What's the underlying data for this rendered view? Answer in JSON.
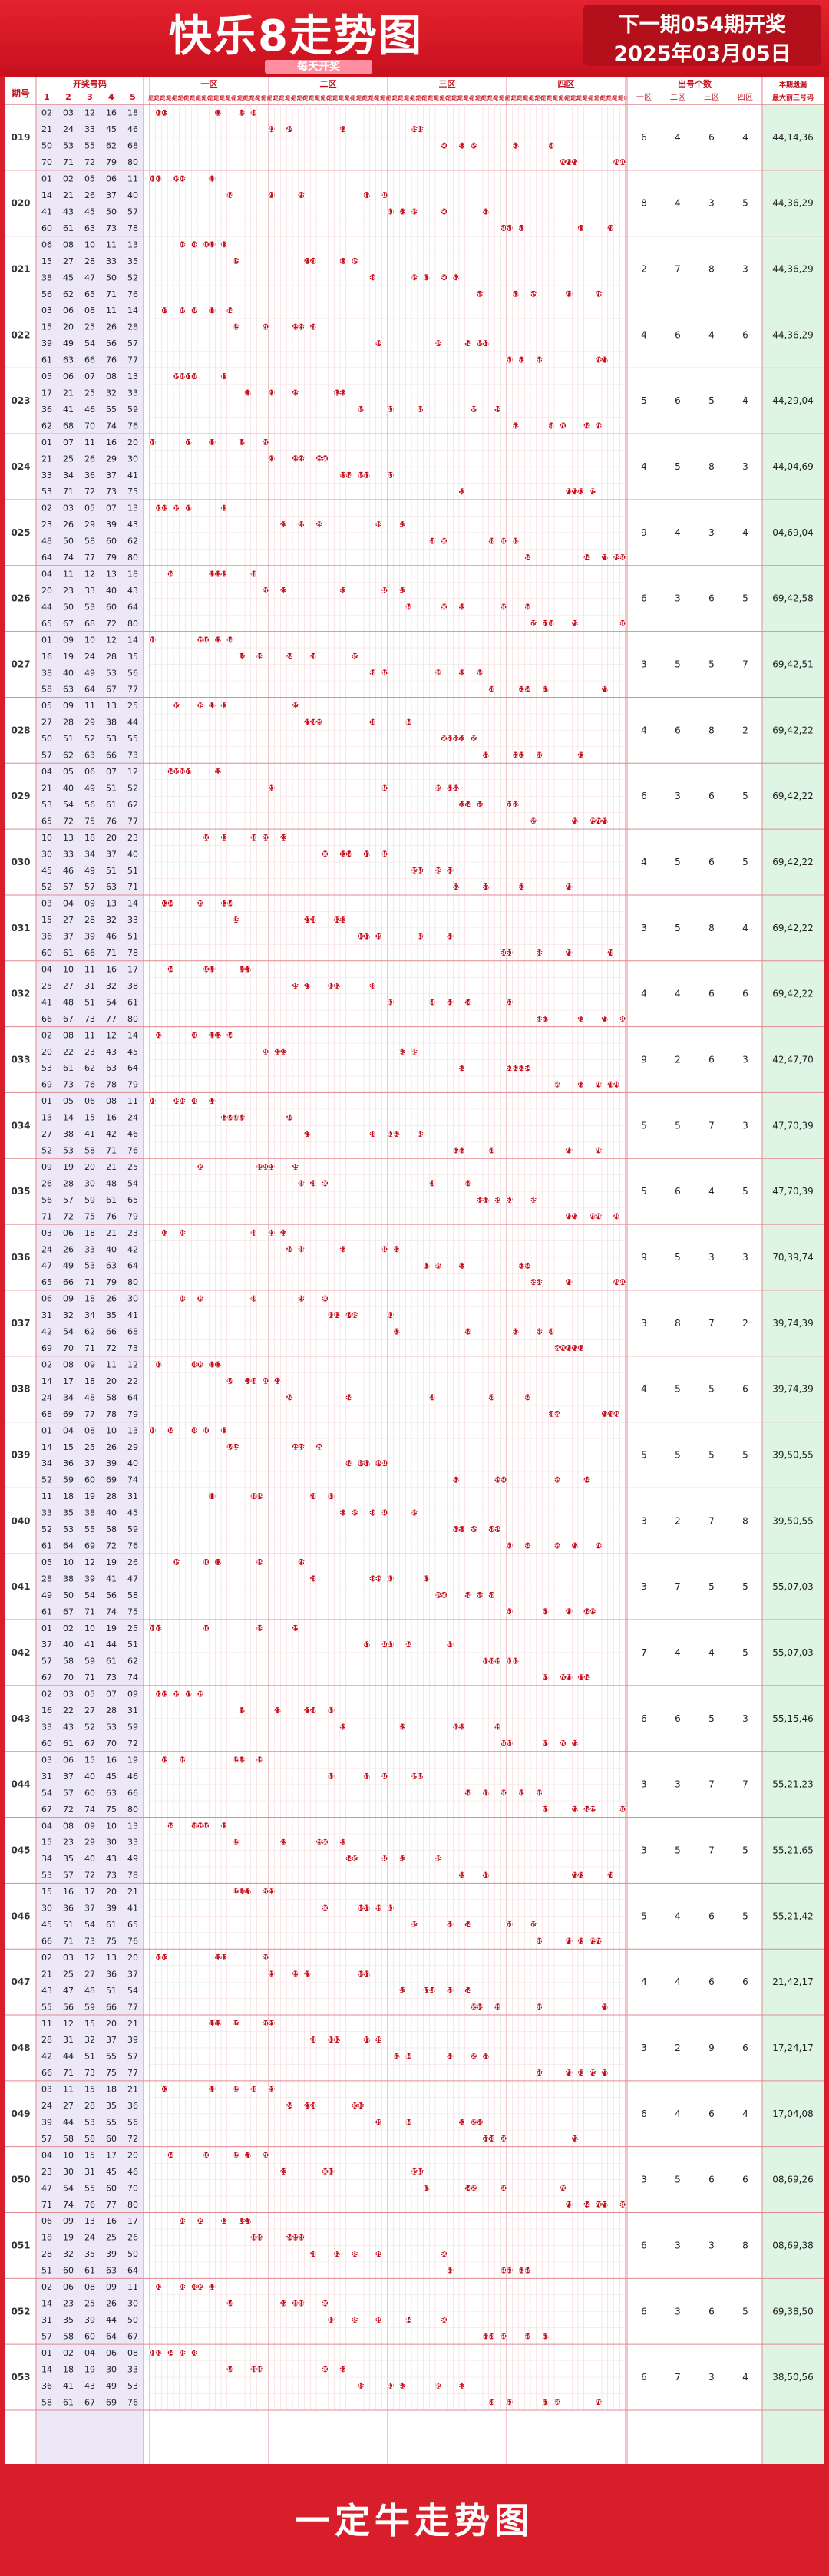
{
  "header": {
    "title": "快乐8走势图",
    "subtitle": "每天开奖",
    "next_draw": "下一期054期开奖",
    "next_date": "2025年03月05日"
  },
  "table": {
    "issue_header": "期号",
    "numbers_header": "开奖号码",
    "number_columns": [
      "1",
      "2",
      "3",
      "4",
      "5"
    ],
    "zones": [
      "一区",
      "二区",
      "三区",
      "四区"
    ],
    "tail_labels": [
      "尾1",
      "尾2",
      "尾3",
      "尾4",
      "尾5",
      "尾6",
      "尾7",
      "尾8",
      "尾9",
      "尾0"
    ],
    "count_header": "出号个数",
    "count_columns": [
      "一区",
      "二区",
      "三区",
      "四区"
    ],
    "gap_header": "本期遗漏最大前三号码"
  },
  "draws": [
    {
      "issue": "019",
      "numbers": [
        2,
        3,
        12,
        16,
        18,
        21,
        24,
        33,
        45,
        46,
        50,
        53,
        55,
        62,
        68,
        70,
        71,
        72,
        79,
        80
      ],
      "counts": [
        6,
        4,
        6,
        4
      ],
      "gap": "44,14,36"
    },
    {
      "issue": "020",
      "numbers": [
        1,
        2,
        5,
        6,
        11,
        14,
        21,
        26,
        37,
        40,
        41,
        43,
        45,
        50,
        57,
        60,
        61,
        63,
        73,
        78
      ],
      "counts": [
        8,
        4,
        3,
        5
      ],
      "gap": "44,36,29"
    },
    {
      "issue": "021",
      "numbers": [
        6,
        8,
        10,
        11,
        13,
        15,
        27,
        28,
        33,
        35,
        38,
        45,
        47,
        50,
        52,
        56,
        62,
        65,
        71,
        76
      ],
      "counts": [
        2,
        7,
        8,
        3
      ],
      "gap": "44,36,29"
    },
    {
      "issue": "022",
      "numbers": [
        3,
        6,
        8,
        11,
        14,
        15,
        20,
        25,
        26,
        28,
        39,
        49,
        54,
        56,
        57,
        61,
        63,
        66,
        76,
        77
      ],
      "counts": [
        4,
        6,
        4,
        6
      ],
      "gap": "44,36,29"
    },
    {
      "issue": "023",
      "numbers": [
        5,
        6,
        7,
        8,
        13,
        17,
        21,
        25,
        32,
        33,
        36,
        41,
        46,
        55,
        59,
        62,
        68,
        70,
        74,
        76
      ],
      "counts": [
        5,
        6,
        5,
        4
      ],
      "gap": "44,29,04"
    },
    {
      "issue": "024",
      "numbers": [
        1,
        7,
        11,
        16,
        20,
        21,
        25,
        26,
        29,
        30,
        33,
        34,
        36,
        37,
        41,
        53,
        71,
        72,
        73,
        75
      ],
      "counts": [
        4,
        5,
        8,
        3
      ],
      "gap": "44,04,69"
    },
    {
      "issue": "025",
      "numbers": [
        2,
        3,
        5,
        7,
        13,
        23,
        26,
        29,
        39,
        43,
        48,
        50,
        58,
        60,
        62,
        64,
        74,
        77,
        79,
        80
      ],
      "counts": [
        9,
        4,
        3,
        4
      ],
      "gap": "04,69,04"
    },
    {
      "issue": "026",
      "numbers": [
        4,
        11,
        12,
        13,
        18,
        20,
        23,
        33,
        40,
        43,
        44,
        50,
        53,
        60,
        64,
        65,
        67,
        68,
        72,
        80
      ],
      "counts": [
        6,
        3,
        6,
        5
      ],
      "gap": "69,42,58"
    },
    {
      "issue": "027",
      "numbers": [
        1,
        9,
        10,
        12,
        14,
        16,
        19,
        24,
        28,
        35,
        38,
        40,
        49,
        53,
        56,
        58,
        63,
        64,
        67,
        77
      ],
      "counts": [
        3,
        5,
        5,
        7
      ],
      "gap": "69,42,51"
    },
    {
      "issue": "028",
      "numbers": [
        5,
        9,
        11,
        13,
        25,
        27,
        28,
        29,
        38,
        44,
        50,
        51,
        52,
        53,
        55,
        57,
        62,
        63,
        66,
        73
      ],
      "counts": [
        4,
        6,
        8,
        2
      ],
      "gap": "69,42,22"
    },
    {
      "issue": "029",
      "numbers": [
        4,
        5,
        6,
        7,
        12,
        21,
        40,
        49,
        51,
        52,
        53,
        54,
        56,
        61,
        62,
        65,
        72,
        75,
        76,
        77
      ],
      "counts": [
        6,
        3,
        6,
        5
      ],
      "gap": "69,42,22"
    },
    {
      "issue": "030",
      "numbers": [
        10,
        13,
        18,
        20,
        23,
        30,
        33,
        34,
        37,
        40,
        45,
        46,
        49,
        51,
        52,
        57,
        51,
        57,
        63,
        71
      ],
      "counts": [
        4,
        5,
        6,
        5
      ],
      "gap": "69,42,22"
    },
    {
      "issue": "031",
      "numbers": [
        3,
        4,
        9,
        13,
        14,
        15,
        27,
        28,
        32,
        33,
        36,
        37,
        39,
        46,
        51,
        60,
        61,
        66,
        71,
        78
      ],
      "counts": [
        3,
        5,
        8,
        4
      ],
      "gap": "69,42,22"
    },
    {
      "issue": "032",
      "numbers": [
        4,
        10,
        11,
        16,
        17,
        25,
        27,
        31,
        32,
        38,
        41,
        48,
        51,
        54,
        61,
        66,
        67,
        73,
        77,
        80
      ],
      "counts": [
        4,
        4,
        6,
        6
      ],
      "gap": "69,42,22"
    },
    {
      "issue": "033",
      "numbers": [
        2,
        8,
        11,
        12,
        14,
        20,
        22,
        23,
        43,
        45,
        53,
        61,
        62,
        63,
        64,
        69,
        73,
        76,
        78,
        79
      ],
      "counts": [
        9,
        2,
        6,
        3
      ],
      "gap": "42,47,70"
    },
    {
      "issue": "034",
      "numbers": [
        1,
        5,
        6,
        8,
        11,
        13,
        14,
        15,
        16,
        24,
        27,
        38,
        41,
        42,
        46,
        52,
        53,
        58,
        71,
        76
      ],
      "counts": [
        5,
        5,
        7,
        3
      ],
      "gap": "47,70,39"
    },
    {
      "issue": "035",
      "numbers": [
        9,
        19,
        20,
        21,
        25,
        26,
        28,
        30,
        48,
        54,
        56,
        57,
        59,
        61,
        65,
        71,
        72,
        75,
        76,
        79
      ],
      "counts": [
        5,
        6,
        4,
        5
      ],
      "gap": "47,70,39"
    },
    {
      "issue": "036",
      "numbers": [
        3,
        6,
        18,
        21,
        23,
        24,
        26,
        33,
        40,
        42,
        47,
        49,
        53,
        63,
        64,
        65,
        66,
        71,
        80,
        79
      ],
      "counts": [
        9,
        5,
        3,
        3
      ],
      "gap": "70,39,74"
    },
    {
      "issue": "037",
      "numbers": [
        6,
        9,
        18,
        26,
        30,
        31,
        32,
        34,
        35,
        41,
        42,
        54,
        62,
        66,
        68,
        69,
        70,
        71,
        72,
        73
      ],
      "counts": [
        3,
        8,
        7,
        2
      ],
      "gap": "39,74,39"
    },
    {
      "issue": "038",
      "numbers": [
        2,
        8,
        9,
        11,
        12,
        14,
        17,
        18,
        20,
        22,
        24,
        34,
        48,
        58,
        64,
        68,
        69,
        77,
        78,
        79
      ],
      "counts": [
        4,
        5,
        5,
        6
      ],
      "gap": "39,74,39"
    },
    {
      "issue": "039",
      "numbers": [
        1,
        4,
        8,
        10,
        13,
        14,
        15,
        25,
        26,
        29,
        34,
        36,
        37,
        39,
        40,
        52,
        59,
        60,
        69,
        74
      ],
      "counts": [
        5,
        5,
        5,
        5
      ],
      "gap": "39,50,55"
    },
    {
      "issue": "040",
      "numbers": [
        11,
        18,
        19,
        28,
        31,
        33,
        35,
        38,
        40,
        45,
        52,
        53,
        55,
        58,
        59,
        61,
        64,
        69,
        72,
        76
      ],
      "counts": [
        3,
        2,
        7,
        8
      ],
      "gap": "39,50,55"
    },
    {
      "issue": "041",
      "numbers": [
        5,
        10,
        12,
        19,
        26,
        28,
        38,
        39,
        41,
        47,
        49,
        50,
        54,
        56,
        58,
        61,
        67,
        71,
        74,
        75
      ],
      "counts": [
        3,
        7,
        5,
        5
      ],
      "gap": "55,07,03"
    },
    {
      "issue": "042",
      "numbers": [
        1,
        2,
        10,
        19,
        25,
        37,
        40,
        41,
        44,
        51,
        57,
        58,
        59,
        61,
        62,
        67,
        70,
        71,
        73,
        74
      ],
      "counts": [
        7,
        4,
        4,
        5
      ],
      "gap": "55,07,03"
    },
    {
      "issue": "043",
      "numbers": [
        2,
        3,
        5,
        7,
        9,
        16,
        22,
        27,
        28,
        31,
        33,
        43,
        52,
        53,
        59,
        60,
        61,
        67,
        70,
        72
      ],
      "counts": [
        6,
        6,
        5,
        3
      ],
      "gap": "55,15,46"
    },
    {
      "issue": "044",
      "numbers": [
        3,
        6,
        15,
        16,
        19,
        31,
        37,
        40,
        45,
        46,
        54,
        57,
        60,
        63,
        66,
        67,
        72,
        74,
        75,
        80
      ],
      "counts": [
        3,
        3,
        7,
        7
      ],
      "gap": "55,21,23"
    },
    {
      "issue": "045",
      "numbers": [
        4,
        8,
        9,
        10,
        13,
        15,
        23,
        29,
        30,
        33,
        34,
        35,
        40,
        43,
        49,
        53,
        57,
        72,
        73,
        78
      ],
      "counts": [
        3,
        5,
        7,
        5
      ],
      "gap": "55,21,65"
    },
    {
      "issue": "046",
      "numbers": [
        15,
        16,
        17,
        20,
        21,
        30,
        36,
        37,
        39,
        41,
        45,
        51,
        54,
        61,
        65,
        66,
        71,
        73,
        75,
        76
      ],
      "counts": [
        5,
        4,
        6,
        5
      ],
      "gap": "55,21,42"
    },
    {
      "issue": "047",
      "numbers": [
        2,
        3,
        12,
        13,
        20,
        21,
        25,
        27,
        36,
        37,
        43,
        47,
        48,
        51,
        54,
        55,
        56,
        59,
        66,
        77
      ],
      "counts": [
        4,
        4,
        6,
        6
      ],
      "gap": "21,42,17"
    },
    {
      "issue": "048",
      "numbers": [
        11,
        12,
        15,
        20,
        21,
        28,
        31,
        32,
        37,
        39,
        42,
        44,
        51,
        55,
        57,
        66,
        71,
        73,
        75,
        77
      ],
      "counts": [
        3,
        2,
        9,
        6
      ],
      "gap": "17,24,17"
    },
    {
      "issue": "049",
      "numbers": [
        3,
        11,
        15,
        18,
        21,
        24,
        27,
        28,
        35,
        36,
        39,
        44,
        53,
        56,
        58,
        55,
        57,
        58,
        60,
        72
      ],
      "counts": [
        6,
        4,
        6,
        4
      ],
      "gap": "17,04,08"
    },
    {
      "issue": "050",
      "numbers": [
        4,
        10,
        15,
        17,
        20,
        23,
        30,
        31,
        45,
        46,
        47,
        54,
        55,
        60,
        70,
        71,
        74,
        76,
        77,
        80
      ],
      "counts": [
        3,
        5,
        6,
        6
      ],
      "gap": "08,69,26"
    },
    {
      "issue": "051",
      "numbers": [
        6,
        9,
        13,
        16,
        17,
        18,
        19,
        24,
        25,
        26,
        28,
        32,
        35,
        39,
        50,
        51,
        60,
        61,
        63,
        64
      ],
      "counts": [
        6,
        3,
        3,
        8
      ],
      "gap": "08,69,38"
    },
    {
      "issue": "052",
      "numbers": [
        2,
        6,
        8,
        9,
        11,
        14,
        23,
        25,
        26,
        30,
        31,
        35,
        39,
        44,
        50,
        57,
        58,
        60,
        64,
        67
      ],
      "counts": [
        6,
        3,
        6,
        5
      ],
      "gap": "69,38,50"
    },
    {
      "issue": "053",
      "numbers": [
        1,
        2,
        4,
        6,
        8,
        14,
        18,
        19,
        30,
        33,
        36,
        41,
        43,
        49,
        53,
        58,
        61,
        67,
        69,
        76
      ],
      "counts": [
        6,
        7,
        3,
        4
      ],
      "gap": "38,50,56"
    }
  ],
  "footer": {
    "text": "一定牛走势图"
  }
}
